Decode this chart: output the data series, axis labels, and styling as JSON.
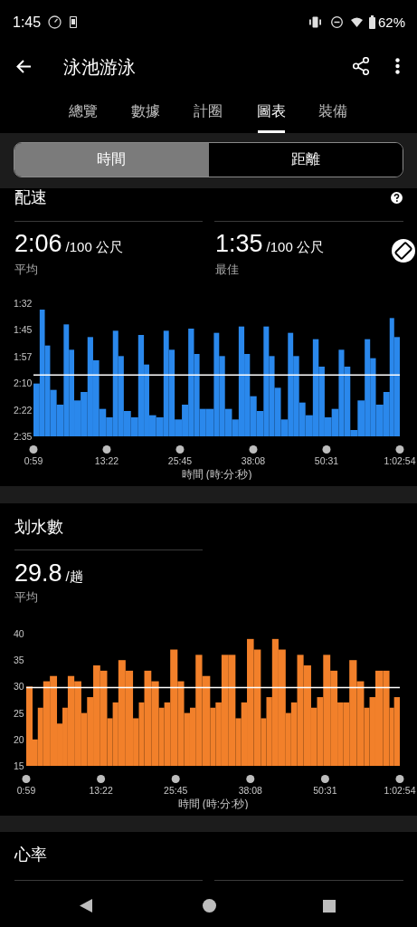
{
  "chart_data": [
    {
      "type": "other",
      "title": "泳池游泳",
      "annotations": [
        "1:45",
        "62%",
        "總覽",
        "數據",
        "計圈",
        "圖表",
        "裝備",
        "時間",
        "距離"
      ]
    },
    {
      "type": "histogram",
      "title": "配速",
      "xlabel": "時間 (時:分:秒)",
      "annotations": [
        "2:06",
        "/100 公尺",
        "平均",
        "1:35",
        "/100 公尺",
        "最佳"
      ],
      "bins": [
        59,
        122,
        174,
        228,
        294,
        365,
        419,
        472,
        537,
        607,
        664,
        725,
        795,
        864,
        919,
        975,
        1047,
        1121,
        1179,
        1233,
        1303,
        1378,
        1432,
        1491,
        1564,
        1629,
        1687,
        1743,
        1809,
        1888,
        1942,
        2001,
        2072,
        2140,
        2197,
        2254,
        2322,
        2392,
        2447,
        2504,
        2568,
        2639,
        2693,
        2753,
        2817,
        2892,
        2951,
        3012,
        3083,
        3154,
        3210,
        3272,
        3346,
        3418,
        3473,
        3531,
        3607,
        3671,
        3717,
        3774
      ],
      "base": [
        155,
        155,
        155,
        155,
        155,
        155,
        155,
        155,
        155,
        155,
        155,
        155,
        155,
        155,
        155,
        155,
        155,
        155,
        155,
        155,
        155,
        155,
        155,
        155,
        155,
        155,
        155,
        155,
        155,
        155,
        155,
        155,
        155,
        155,
        155,
        155,
        155,
        155,
        155,
        155,
        155,
        155,
        155,
        155,
        155,
        155,
        155,
        155,
        155,
        155,
        155,
        155,
        155,
        155,
        155,
        155,
        155,
        155,
        155
      ],
      "values": [
        -25,
        -60,
        -43,
        -22,
        -15,
        -53,
        -41,
        -17,
        -21,
        -47,
        -36,
        -13,
        -9,
        -50,
        -38,
        -12,
        -9,
        -48,
        -34,
        -10,
        -9,
        -50,
        -41,
        -8,
        -15,
        -51,
        -39,
        -13,
        -13,
        -49,
        -38,
        -13,
        -8,
        -52,
        -39,
        -19,
        -12,
        -52,
        -38,
        -23,
        -8,
        -49,
        -38,
        -16,
        -10,
        -46,
        -33,
        -9,
        -13,
        -41,
        -33,
        -3,
        -17,
        -46,
        -37,
        -15,
        -21,
        -56,
        -47
      ],
      "color": "#2a88ec",
      "xlim": [
        59,
        3774
      ],
      "xticks": [
        {
          "value": 59,
          "label": "0:59"
        },
        {
          "value": 802,
          "label": "13:22"
        },
        {
          "value": 1545,
          "label": "25:45"
        },
        {
          "value": 2288,
          "label": "38:08"
        },
        {
          "value": 3031,
          "label": "50:31"
        },
        {
          "value": 3774,
          "label": "1:02:54"
        }
      ],
      "ylim": [
        155,
        92
      ],
      "yticks": [
        {
          "value": 92,
          "label": "1:32"
        },
        {
          "value": 104.6,
          "label": "1:45"
        },
        {
          "value": 117.2,
          "label": "1:57"
        },
        {
          "value": 129.8,
          "label": "2:10"
        },
        {
          "value": 142.4,
          "label": "2:22"
        },
        {
          "value": 155,
          "label": "2:35"
        }
      ],
      "ref_lines": [
        {
          "axis": "y",
          "value": 126,
          "color": "#ffffff"
        }
      ]
    },
    {
      "type": "histogram",
      "title": "划水數",
      "xlabel": "時間 (時:分:秒)",
      "annotations": [
        "29.8",
        "/趟",
        "平均"
      ],
      "bins": [
        59,
        122,
        174,
        228,
        294,
        365,
        419,
        472,
        537,
        607,
        664,
        725,
        795,
        864,
        919,
        975,
        1047,
        1121,
        1179,
        1233,
        1303,
        1378,
        1432,
        1491,
        1564,
        1629,
        1687,
        1743,
        1809,
        1888,
        1942,
        2001,
        2072,
        2140,
        2197,
        2254,
        2322,
        2392,
        2447,
        2504,
        2568,
        2639,
        2693,
        2753,
        2817,
        2892,
        2951,
        3012,
        3083,
        3154,
        3210,
        3272,
        3346,
        3418,
        3473,
        3531,
        3607,
        3671,
        3717,
        3774
      ],
      "values": [
        30,
        20,
        26,
        31,
        32,
        23,
        26,
        32,
        31,
        25,
        28,
        34,
        33,
        24,
        27,
        35,
        33,
        24,
        27,
        33,
        31,
        26,
        27,
        37,
        31,
        25,
        26,
        36,
        32,
        26,
        27,
        36,
        36,
        24,
        27,
        39,
        37,
        24,
        28,
        39,
        37,
        25,
        27,
        36,
        34,
        26,
        28,
        36,
        33,
        27,
        27,
        35,
        31,
        26,
        28,
        33,
        33,
        26,
        28
      ],
      "color": "#f2802a",
      "xlim": [
        59,
        3774
      ],
      "xticks": [
        {
          "value": 59,
          "label": "0:59"
        },
        {
          "value": 802,
          "label": "13:22"
        },
        {
          "value": 1545,
          "label": "25:45"
        },
        {
          "value": 2288,
          "label": "38:08"
        },
        {
          "value": 3031,
          "label": "50:31"
        },
        {
          "value": 3774,
          "label": "1:02:54"
        }
      ],
      "ylim": [
        15,
        40
      ],
      "yticks": [
        15,
        20,
        25,
        30,
        35,
        40
      ],
      "ref_lines": [
        {
          "axis": "y",
          "value": 29.8,
          "color": "#ffffff"
        }
      ]
    },
    {
      "type": "other",
      "title": "心率"
    }
  ]
}
